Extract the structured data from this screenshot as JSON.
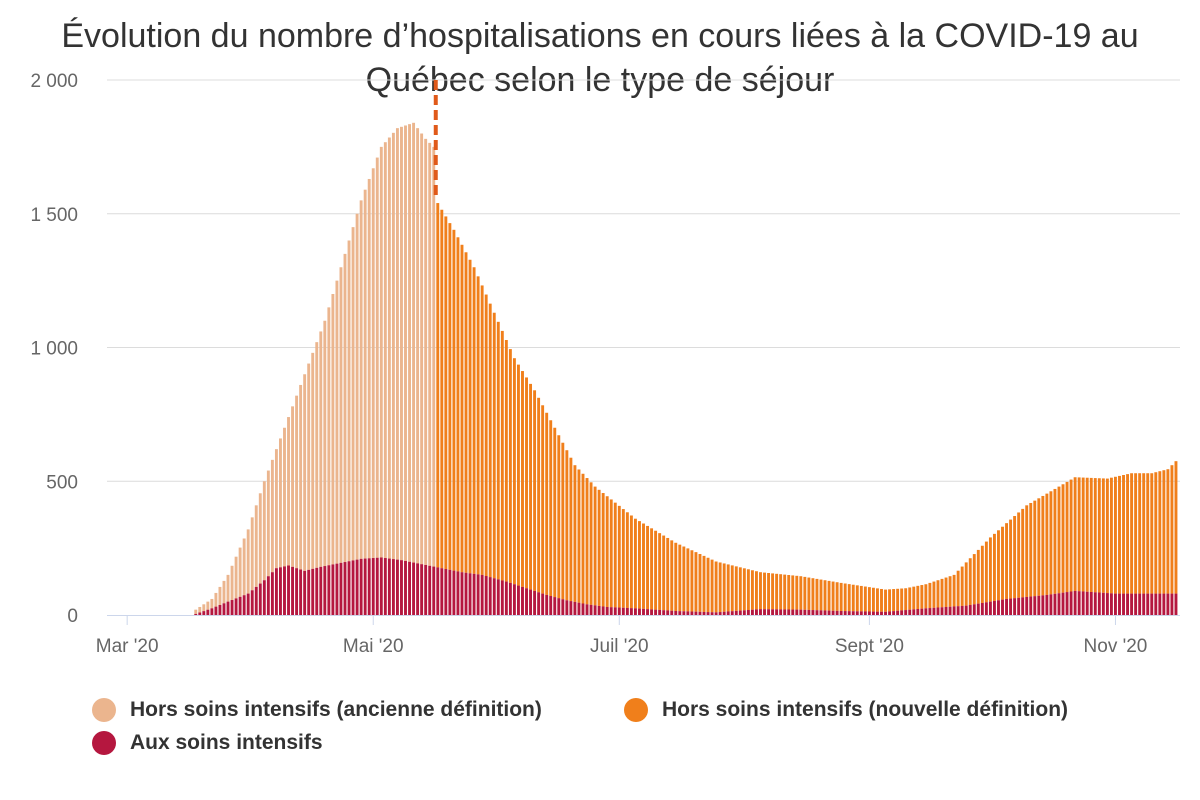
{
  "chart_data": {
    "type": "bar",
    "stacked": true,
    "title": "Évolution du nombre d’hospitalisations en cours liées à la COVID-19 au Québec selon le type de séjour",
    "xlabel": "",
    "ylabel": "",
    "ylim": [
      0,
      2000
    ],
    "y_ticks": [
      0,
      500,
      1000,
      1500,
      2000
    ],
    "y_tick_labels": [
      "0",
      "500",
      "1 000",
      "1 500",
      "2 000"
    ],
    "x_range": [
      "2020-02-25",
      "2020-11-17"
    ],
    "x_ticks": [
      "2020-03-01",
      "2020-05-01",
      "2020-07-01",
      "2020-09-01",
      "2020-11-01"
    ],
    "x_tick_labels": [
      "Mar '20",
      "Mai '20",
      "Juil '20",
      "Sept '20",
      "Nov '20"
    ],
    "grid": true,
    "legend_position": "bottom",
    "definition_change_date": "2020-05-17",
    "series": [
      {
        "name": "Aux soins intensifs",
        "color": "#b5173f",
        "anchors": [
          [
            "2020-03-18",
            4
          ],
          [
            "2020-03-22",
            25
          ],
          [
            "2020-03-26",
            50
          ],
          [
            "2020-03-31",
            80
          ],
          [
            "2020-04-04",
            130
          ],
          [
            "2020-04-07",
            175
          ],
          [
            "2020-04-10",
            185
          ],
          [
            "2020-04-14",
            165
          ],
          [
            "2020-04-18",
            180
          ],
          [
            "2020-04-23",
            195
          ],
          [
            "2020-04-28",
            210
          ],
          [
            "2020-05-03",
            215
          ],
          [
            "2020-05-08",
            205
          ],
          [
            "2020-05-13",
            190
          ],
          [
            "2020-05-18",
            175
          ],
          [
            "2020-05-23",
            160
          ],
          [
            "2020-05-28",
            150
          ],
          [
            "2020-06-03",
            125
          ],
          [
            "2020-06-08",
            100
          ],
          [
            "2020-06-13",
            75
          ],
          [
            "2020-06-18",
            55
          ],
          [
            "2020-06-23",
            40
          ],
          [
            "2020-06-28",
            30
          ],
          [
            "2020-07-05",
            25
          ],
          [
            "2020-07-15",
            15
          ],
          [
            "2020-07-25",
            10
          ],
          [
            "2020-08-05",
            22
          ],
          [
            "2020-08-15",
            20
          ],
          [
            "2020-08-25",
            15
          ],
          [
            "2020-09-05",
            12
          ],
          [
            "2020-09-15",
            25
          ],
          [
            "2020-09-25",
            35
          ],
          [
            "2020-10-05",
            60
          ],
          [
            "2020-10-15",
            75
          ],
          [
            "2020-10-22",
            90
          ],
          [
            "2020-11-01",
            80
          ],
          [
            "2020-11-10",
            80
          ],
          [
            "2020-11-16",
            80
          ]
        ]
      },
      {
        "name": "Hors soins intensifs (ancienne définition)",
        "color": "#ebb58e",
        "total_anchors": [
          [
            "2020-03-13",
            5
          ],
          [
            "2020-03-18",
            20
          ],
          [
            "2020-03-22",
            60
          ],
          [
            "2020-03-26",
            150
          ],
          [
            "2020-03-31",
            320
          ],
          [
            "2020-04-04",
            500
          ],
          [
            "2020-04-09",
            700
          ],
          [
            "2020-04-14",
            900
          ],
          [
            "2020-04-19",
            1100
          ],
          [
            "2020-04-24",
            1350
          ],
          [
            "2020-04-28",
            1550
          ],
          [
            "2020-05-03",
            1750
          ],
          [
            "2020-05-07",
            1820
          ],
          [
            "2020-05-11",
            1840
          ],
          [
            "2020-05-14",
            1780
          ],
          [
            "2020-05-16",
            1750
          ]
        ]
      },
      {
        "name": "Hors soins intensifs (nouvelle définition)",
        "color": "#f07f1b",
        "total_anchors": [
          [
            "2020-05-17",
            1540
          ],
          [
            "2020-05-21",
            1440
          ],
          [
            "2020-05-26",
            1300
          ],
          [
            "2020-05-31",
            1130
          ],
          [
            "2020-06-05",
            960
          ],
          [
            "2020-06-10",
            840
          ],
          [
            "2020-06-15",
            700
          ],
          [
            "2020-06-20",
            560
          ],
          [
            "2020-06-25",
            480
          ],
          [
            "2020-06-30",
            420
          ],
          [
            "2020-07-05",
            360
          ],
          [
            "2020-07-15",
            270
          ],
          [
            "2020-07-25",
            200
          ],
          [
            "2020-08-05",
            160
          ],
          [
            "2020-08-15",
            145
          ],
          [
            "2020-08-25",
            120
          ],
          [
            "2020-09-05",
            95
          ],
          [
            "2020-09-10",
            100
          ],
          [
            "2020-09-15",
            115
          ],
          [
            "2020-09-22",
            150
          ],
          [
            "2020-10-01",
            290
          ],
          [
            "2020-10-10",
            410
          ],
          [
            "2020-10-18",
            480
          ],
          [
            "2020-10-22",
            515
          ],
          [
            "2020-10-30",
            510
          ],
          [
            "2020-11-05",
            530
          ],
          [
            "2020-11-10",
            530
          ],
          [
            "2020-11-14",
            545
          ],
          [
            "2020-11-16",
            575
          ]
        ]
      }
    ]
  },
  "legend": {
    "items": [
      {
        "label": "Hors soins intensifs (ancienne définition)",
        "color": "#ebb58e"
      },
      {
        "label": "Hors soins intensifs (nouvelle définition)",
        "color": "#f07f1b"
      },
      {
        "label": "Aux soins intensifs",
        "color": "#b5173f"
      }
    ]
  }
}
